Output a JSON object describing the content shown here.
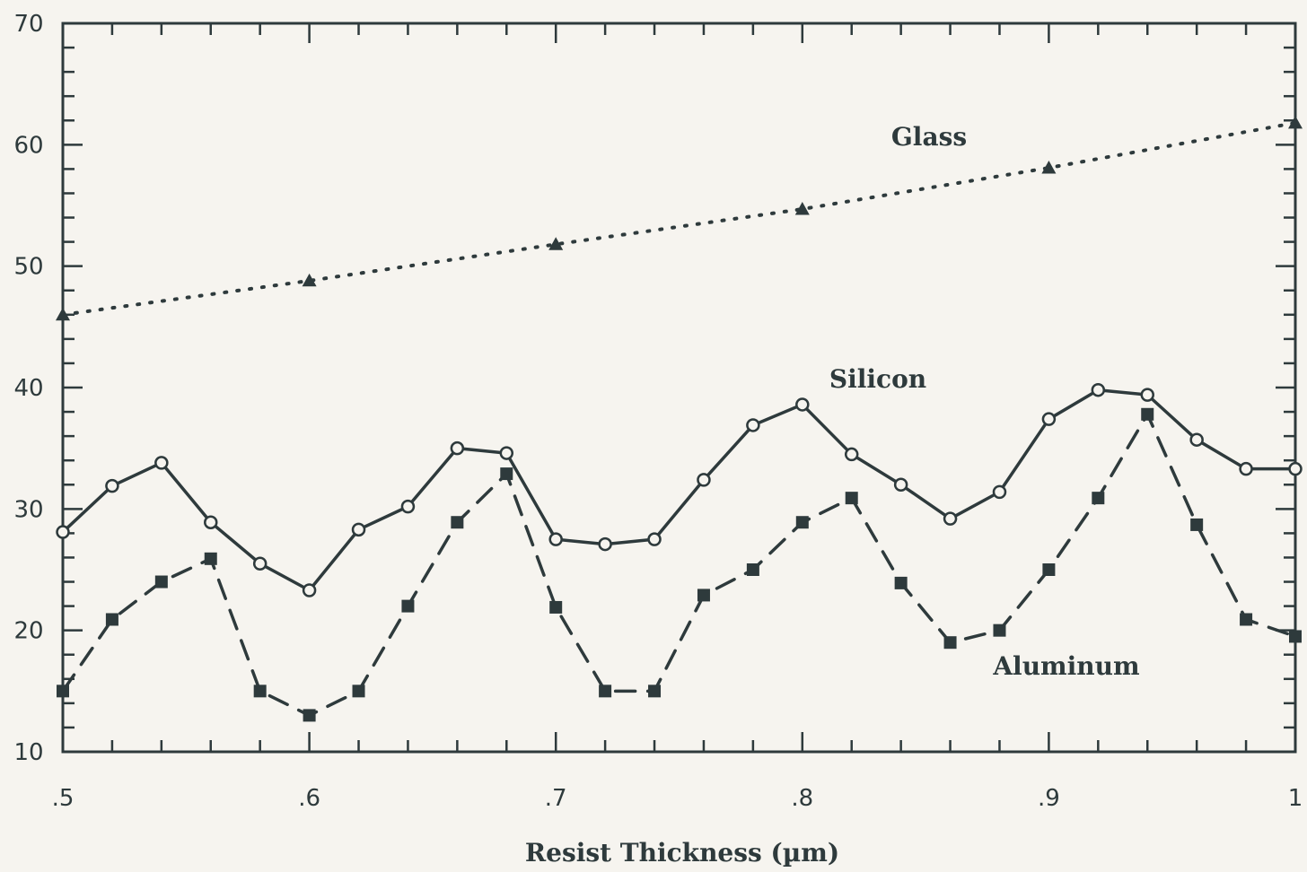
{
  "chart_data": {
    "type": "line",
    "title": "",
    "xlabel": "Resist Thickness (µm)",
    "ylabel": "",
    "xlim": [
      0.5,
      1.0
    ],
    "ylim": [
      10,
      70
    ],
    "x_ticks": [
      0.5,
      0.6,
      0.7,
      0.8,
      0.9,
      1.0
    ],
    "x_tick_labels": [
      ".5",
      ".6",
      ".7",
      ".8",
      ".9",
      "1"
    ],
    "y_ticks": [
      10,
      20,
      30,
      40,
      50,
      60,
      70
    ],
    "y_tick_labels": [
      "10",
      "20",
      "30",
      "40",
      "50",
      "60",
      "70"
    ],
    "grid": false,
    "legend": "none (series labelled directly on plot)",
    "colors": {
      "ink": "#2e3a3c",
      "background": "#f6f4ef"
    },
    "series": [
      {
        "name": "Glass",
        "line_style": "dotted",
        "marker": "triangle",
        "x": [
          0.5,
          0.6,
          0.7,
          0.8,
          0.9,
          1.0
        ],
        "y": [
          46,
          48.8,
          51.8,
          54.7,
          58.1,
          61.8
        ]
      },
      {
        "name": "Silicon",
        "line_style": "solid",
        "marker": "open-circle",
        "x": [
          0.5,
          0.52,
          0.54,
          0.56,
          0.58,
          0.6,
          0.62,
          0.64,
          0.66,
          0.68,
          0.7,
          0.72,
          0.74,
          0.76,
          0.78,
          0.8,
          0.82,
          0.84,
          0.86,
          0.88,
          0.9,
          0.92,
          0.94,
          0.96,
          0.98,
          1.0
        ],
        "y": [
          28.1,
          31.9,
          33.8,
          28.9,
          25.5,
          23.3,
          28.3,
          30.2,
          35.0,
          34.6,
          27.5,
          27.1,
          27.5,
          32.4,
          36.9,
          38.6,
          34.5,
          32.0,
          29.2,
          31.4,
          37.4,
          39.8,
          39.4,
          35.7,
          33.3,
          33.3
        ]
      },
      {
        "name": "Aluminum",
        "line_style": "dashed",
        "marker": "filled-square",
        "x": [
          0.5,
          0.52,
          0.54,
          0.56,
          0.58,
          0.6,
          0.62,
          0.64,
          0.66,
          0.68,
          0.7,
          0.72,
          0.74,
          0.76,
          0.78,
          0.8,
          0.82,
          0.84,
          0.86,
          0.88,
          0.9,
          0.92,
          0.94,
          0.96,
          0.98,
          1.0
        ],
        "y": [
          15.0,
          20.9,
          24.0,
          25.9,
          15.0,
          13.0,
          15.0,
          22.0,
          28.9,
          32.9,
          21.9,
          15.0,
          15.0,
          22.9,
          25.0,
          28.9,
          30.9,
          23.9,
          19.0,
          20.0,
          25.0,
          30.9,
          37.8,
          28.7,
          20.9,
          19.5
        ]
      }
    ]
  }
}
